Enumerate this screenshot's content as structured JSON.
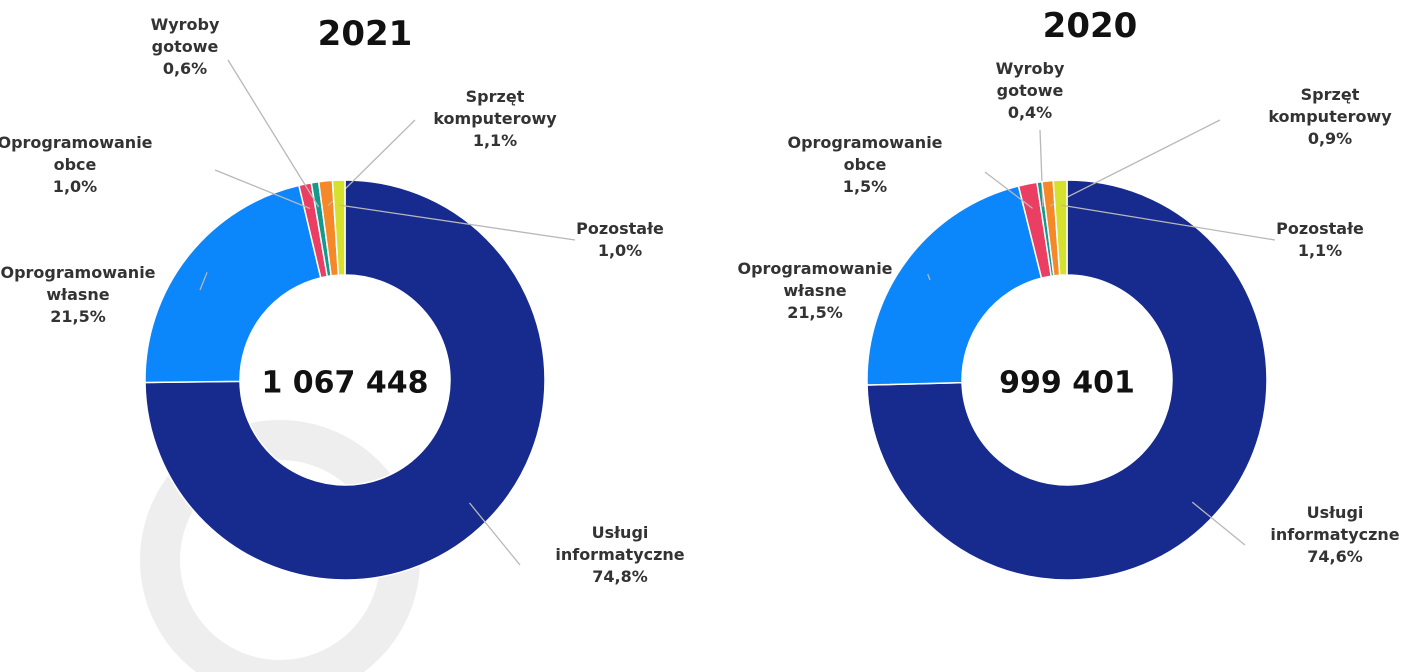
{
  "chart_data": [
    {
      "type": "pie",
      "title": "2021",
      "center_label": "1 067 448",
      "categories": [
        "Usługi informatyczne",
        "Oprogramowanie własne",
        "Oprogramowanie obce",
        "Wyroby gotowe",
        "Sprzęt komputerowy",
        "Pozostałe"
      ],
      "values": [
        74.8,
        21.5,
        1.0,
        0.6,
        1.1,
        1.0
      ],
      "value_labels": [
        "74,8%",
        "21,5%",
        "1,0%",
        "0,6%",
        "1,1%",
        "1,0%"
      ],
      "colors": [
        "#172a8e",
        "#0c86fb",
        "#ea3f62",
        "#139a8c",
        "#f5892a",
        "#d6e12e"
      ]
    },
    {
      "type": "pie",
      "title": "2020",
      "center_label": "999 401",
      "categories": [
        "Usługi informatyczne",
        "Oprogramowanie własne",
        "Oprogramowanie obce",
        "Wyroby gotowe",
        "Sprzęt komputerowy",
        "Pozostałe"
      ],
      "values": [
        74.6,
        21.5,
        1.5,
        0.4,
        0.9,
        1.1
      ],
      "value_labels": [
        "74,6%",
        "21,5%",
        "1,5%",
        "0,4%",
        "0,9%",
        "1,1%"
      ],
      "colors": [
        "#172a8e",
        "#0c86fb",
        "#ea3f62",
        "#139a8c",
        "#f5892a",
        "#d6e12e"
      ]
    }
  ]
}
